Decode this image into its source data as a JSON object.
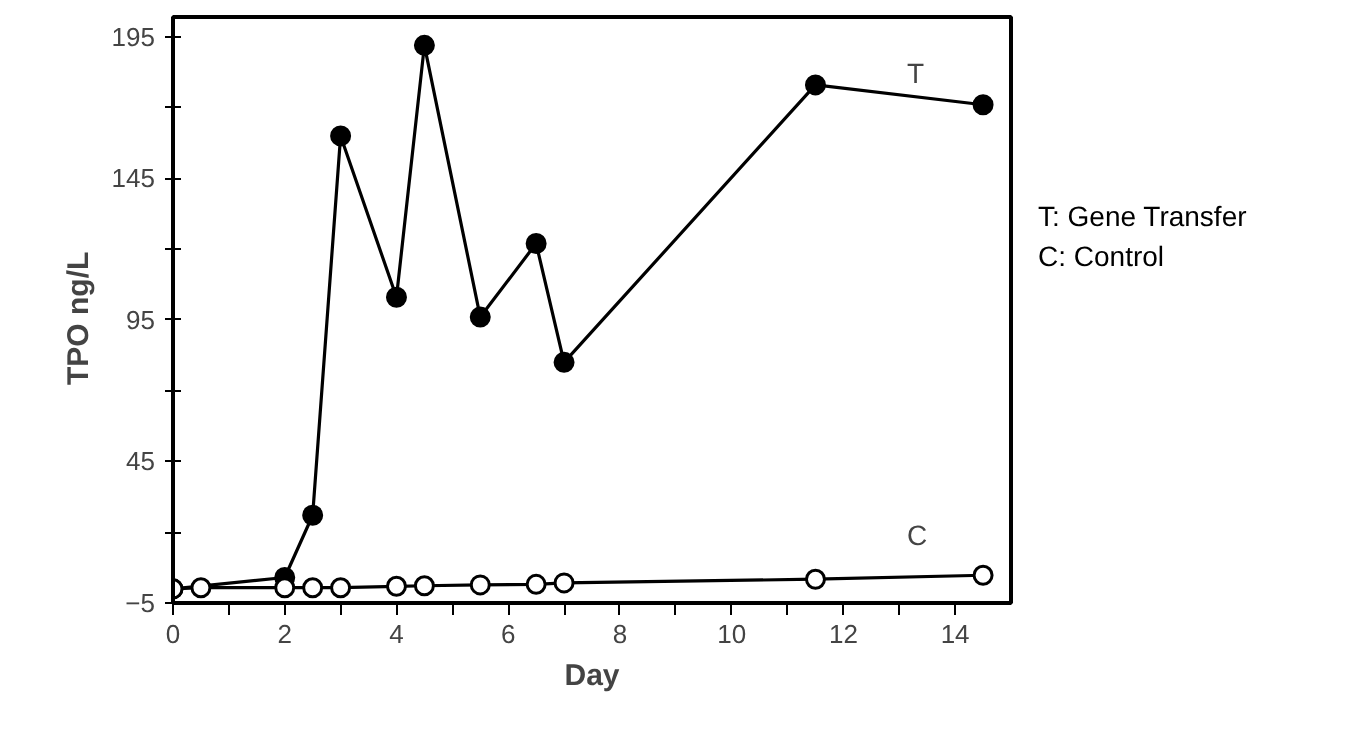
{
  "chart_data": {
    "type": "line",
    "xlabel": "Day",
    "ylabel": "TPO   ng/L",
    "xlim": [
      0,
      15
    ],
    "ylim": [
      -5,
      202
    ],
    "xticks": [
      0,
      {
        "value": 1,
        "label": null
      },
      2,
      {
        "value": 3,
        "label": null
      },
      4,
      {
        "value": 5,
        "label": null
      },
      6,
      {
        "value": 7,
        "label": null
      },
      8,
      {
        "value": 9,
        "label": null
      },
      10,
      {
        "value": 11,
        "label": null
      },
      12,
      {
        "value": 13,
        "label": null
      },
      14
    ],
    "yticks": [
      -5,
      {
        "value": 20,
        "label": null
      },
      45,
      {
        "value": 70,
        "label": null
      },
      95,
      {
        "value": 120,
        "label": null
      },
      145,
      {
        "value": 170,
        "label": null
      },
      195
    ],
    "marker": "circle",
    "grid": false,
    "series": [
      {
        "name": "T",
        "color": "#000000",
        "x": [
          0,
          2,
          2.5,
          3,
          4,
          4.5,
          5.5,
          6.5,
          7,
          11.5,
          14.5
        ],
        "values": [
          0,
          4,
          26,
          160,
          103,
          192,
          96,
          122,
          80,
          178,
          171
        ]
      },
      {
        "name": "C",
        "color": "#000000",
        "x": [
          0,
          0.5,
          2,
          2.5,
          3,
          4,
          4.5,
          5.5,
          6.5,
          7,
          11.5,
          14.5
        ],
        "values": [
          0,
          0.4,
          0.4,
          0.4,
          0.4,
          0.9,
          1.1,
          1.4,
          1.6,
          2.1,
          3.4,
          4.8
        ]
      }
    ],
    "annotations": [
      "T: Gene Transfer",
      "C: Control"
    ]
  }
}
